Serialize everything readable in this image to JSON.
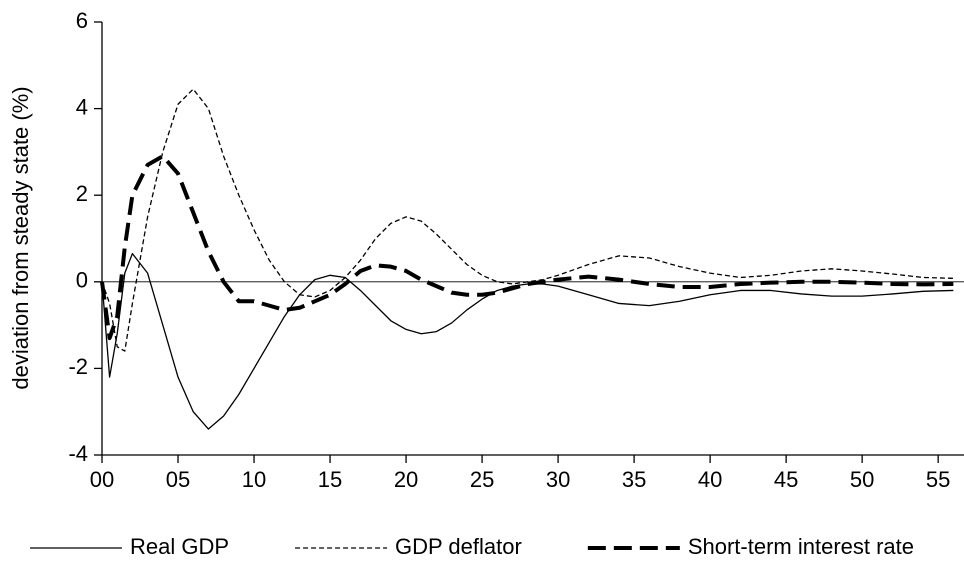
{
  "chart_data": {
    "type": "line",
    "y_label": "deviation from steady state (%)",
    "x": [
      0,
      0.5,
      1,
      1.5,
      2,
      3,
      4,
      5,
      6,
      7,
      8,
      9,
      10,
      11,
      12,
      13,
      14,
      15,
      16,
      17,
      18,
      19,
      20,
      21,
      22,
      23,
      24,
      25,
      26,
      27,
      28,
      29,
      30,
      32,
      34,
      36,
      38,
      40,
      42,
      44,
      46,
      48,
      50,
      52,
      54,
      56
    ],
    "series": [
      {
        "name": "Real GDP",
        "color": "#000000",
        "width": 1.3,
        "dashed": false,
        "values": [
          0,
          -2.2,
          -1.2,
          0.2,
          0.65,
          0.2,
          -1.0,
          -2.2,
          -3.0,
          -3.4,
          -3.1,
          -2.6,
          -2.0,
          -1.4,
          -0.8,
          -0.3,
          0.05,
          0.15,
          0.1,
          -0.2,
          -0.55,
          -0.9,
          -1.1,
          -1.2,
          -1.15,
          -0.95,
          -0.65,
          -0.4,
          -0.2,
          -0.1,
          -0.05,
          -0.05,
          -0.1,
          -0.3,
          -0.5,
          -0.55,
          -0.45,
          -0.3,
          -0.2,
          -0.2,
          -0.28,
          -0.33,
          -0.33,
          -0.28,
          -0.22,
          -0.2
        ]
      },
      {
        "name": "GDP deflator",
        "color": "#000000",
        "width": 1.3,
        "dashed": true,
        "values": [
          0,
          -0.5,
          -1.5,
          -1.6,
          -0.5,
          1.5,
          3.0,
          4.1,
          4.45,
          4.0,
          2.9,
          2.0,
          1.2,
          0.5,
          0.0,
          -0.3,
          -0.35,
          -0.2,
          0.1,
          0.5,
          1.0,
          1.35,
          1.5,
          1.4,
          1.1,
          0.75,
          0.4,
          0.15,
          0.0,
          -0.05,
          0.0,
          0.05,
          0.15,
          0.4,
          0.6,
          0.55,
          0.35,
          0.2,
          0.1,
          0.15,
          0.25,
          0.3,
          0.25,
          0.18,
          0.1,
          0.08
        ]
      },
      {
        "name": "Short-term interest rate",
        "color": "#000000",
        "width": 4,
        "dashed": true,
        "values": [
          0,
          -1.3,
          -0.8,
          0.8,
          2.0,
          2.7,
          2.9,
          2.5,
          1.6,
          0.7,
          0.0,
          -0.45,
          -0.45,
          -0.55,
          -0.65,
          -0.6,
          -0.45,
          -0.3,
          -0.05,
          0.25,
          0.38,
          0.35,
          0.25,
          0.05,
          -0.1,
          -0.25,
          -0.3,
          -0.3,
          -0.25,
          -0.15,
          -0.05,
          0.0,
          0.05,
          0.12,
          0.05,
          -0.05,
          -0.12,
          -0.12,
          -0.05,
          -0.02,
          0.0,
          0.0,
          -0.02,
          -0.05,
          -0.06,
          -0.05
        ]
      }
    ],
    "xlim": [
      0,
      56.7
    ],
    "ylim": [
      -4,
      6
    ],
    "xticks": [
      {
        "value": 0,
        "label": "00"
      },
      {
        "value": 5,
        "label": "05"
      },
      10,
      15,
      20,
      25,
      30,
      35,
      40,
      45,
      50,
      55
    ],
    "yticks": [
      -4,
      -2,
      0,
      2,
      4,
      6
    ],
    "zero_line": true,
    "legend": "bottom"
  }
}
